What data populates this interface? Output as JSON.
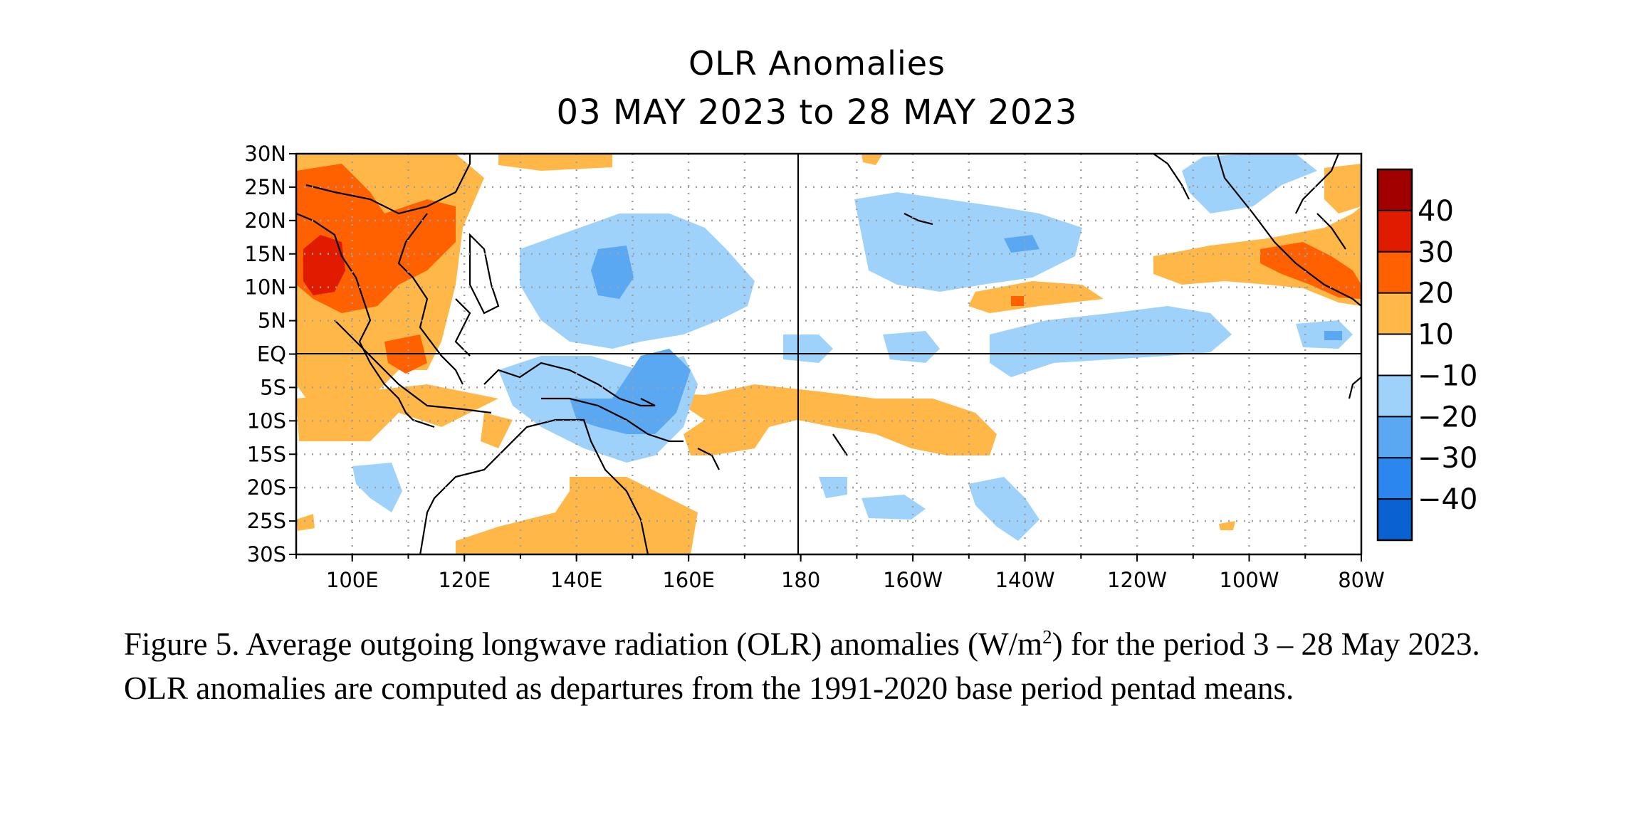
{
  "title": {
    "line1": "OLR Anomalies",
    "line2": "03 MAY 2023 to 28 MAY 2023"
  },
  "map": {
    "lat_labels": [
      "30N",
      "25N",
      "20N",
      "15N",
      "10N",
      "5N",
      "EQ",
      "5S",
      "10S",
      "15S",
      "20S",
      "25S",
      "30S"
    ],
    "lon_labels": [
      "100E",
      "120E",
      "140E",
      "160E",
      "180",
      "160W",
      "140W",
      "120W",
      "100W",
      "80W"
    ],
    "lon_range": [
      90,
      280
    ],
    "lat_range": [
      -30,
      30
    ]
  },
  "colorbar": {
    "labels": [
      "40",
      "30",
      "20",
      "10",
      "−10",
      "−20",
      "−30",
      "−40"
    ],
    "colors": [
      "#a00000",
      "#e01b00",
      "#ff6000",
      "#ffb848",
      "#ffffff",
      "#9ed2fa",
      "#5aa8f2",
      "#2b86ee",
      "#0a62d2"
    ]
  },
  "caption": {
    "before_sup": "Figure 5. Average outgoing longwave radiation (OLR) anomalies (W/m",
    "sup": "2",
    "after_sup": ") for the period 3 –  28 May 2023.  OLR anomalies are computed as departures from the 1991-2020 base period pentad means."
  }
}
